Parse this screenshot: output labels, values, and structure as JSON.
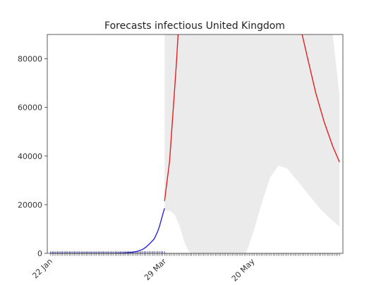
{
  "chart_data": {
    "type": "line",
    "title": "Forecasts infectious United Kingdom",
    "xlabel": "",
    "ylabel": "",
    "x_start": "2020-01-22",
    "x_end": "2020-07-10",
    "xlim": [
      "2020-01-20",
      "2020-07-12"
    ],
    "ylim": [
      0,
      90000
    ],
    "y_ticks": [
      0,
      20000,
      40000,
      60000,
      80000
    ],
    "x_tick_labels": [
      {
        "date": "2020-01-22",
        "label": "22 Jan"
      },
      {
        "date": "2020-03-29",
        "label": "29 Mar"
      },
      {
        "date": "2020-05-20",
        "label": "20 May"
      }
    ],
    "grid": false,
    "colors": {
      "observed": "#2a2ad4",
      "forecast": "#e02020",
      "band": "#ebebeb",
      "baseline": "#1a1a8a"
    },
    "series": [
      {
        "role": "observed",
        "points": [
          [
            "2020-01-22",
            0
          ],
          [
            "2020-02-15",
            0
          ],
          [
            "2020-02-28",
            40
          ],
          [
            "2020-03-05",
            150
          ],
          [
            "2020-03-10",
            400
          ],
          [
            "2020-03-13",
            800
          ],
          [
            "2020-03-16",
            1600
          ],
          [
            "2020-03-18",
            2500
          ],
          [
            "2020-03-20",
            3800
          ],
          [
            "2020-03-22",
            5200
          ],
          [
            "2020-03-23",
            6000
          ],
          [
            "2020-03-24",
            7500
          ],
          [
            "2020-03-25",
            9000
          ],
          [
            "2020-03-26",
            11000
          ],
          [
            "2020-03-27",
            13500
          ],
          [
            "2020-03-28",
            16000
          ],
          [
            "2020-03-29",
            18500
          ]
        ]
      },
      {
        "role": "forecast",
        "segments": [
          [
            [
              "2020-03-29",
              21500
            ],
            [
              "2020-04-01",
              38000
            ],
            [
              "2020-04-03",
              58000
            ],
            [
              "2020-04-05",
              78000
            ],
            [
              "2020-04-06",
              90000
            ]
          ],
          [
            [
              "2020-06-18",
              90000
            ],
            [
              "2020-06-22",
              78000
            ],
            [
              "2020-06-26",
              66000
            ],
            [
              "2020-07-01",
              54000
            ],
            [
              "2020-07-06",
              44000
            ],
            [
              "2020-07-10",
              37500
            ]
          ]
        ]
      }
    ],
    "band": {
      "upper": [
        [
          "2020-03-29",
          90000
        ],
        [
          "2020-06-20",
          90000
        ],
        [
          "2020-06-25",
          90000
        ],
        [
          "2020-07-01",
          90000
        ],
        [
          "2020-07-06",
          90000
        ],
        [
          "2020-07-10",
          65000
        ]
      ],
      "lower": [
        [
          "2020-03-29",
          18000
        ],
        [
          "2020-04-01",
          17500
        ],
        [
          "2020-04-04",
          16000
        ],
        [
          "2020-04-07",
          11000
        ],
        [
          "2020-04-10",
          4000
        ],
        [
          "2020-04-13",
          0
        ],
        [
          "2020-05-16",
          0
        ],
        [
          "2020-05-20",
          8000
        ],
        [
          "2020-05-25",
          20000
        ],
        [
          "2020-05-30",
          31000
        ],
        [
          "2020-06-04",
          36000
        ],
        [
          "2020-06-09",
          35000
        ],
        [
          "2020-06-15",
          30000
        ],
        [
          "2020-06-22",
          24000
        ],
        [
          "2020-06-29",
          18000
        ],
        [
          "2020-07-05",
          14000
        ],
        [
          "2020-07-10",
          11000
        ]
      ]
    }
  }
}
